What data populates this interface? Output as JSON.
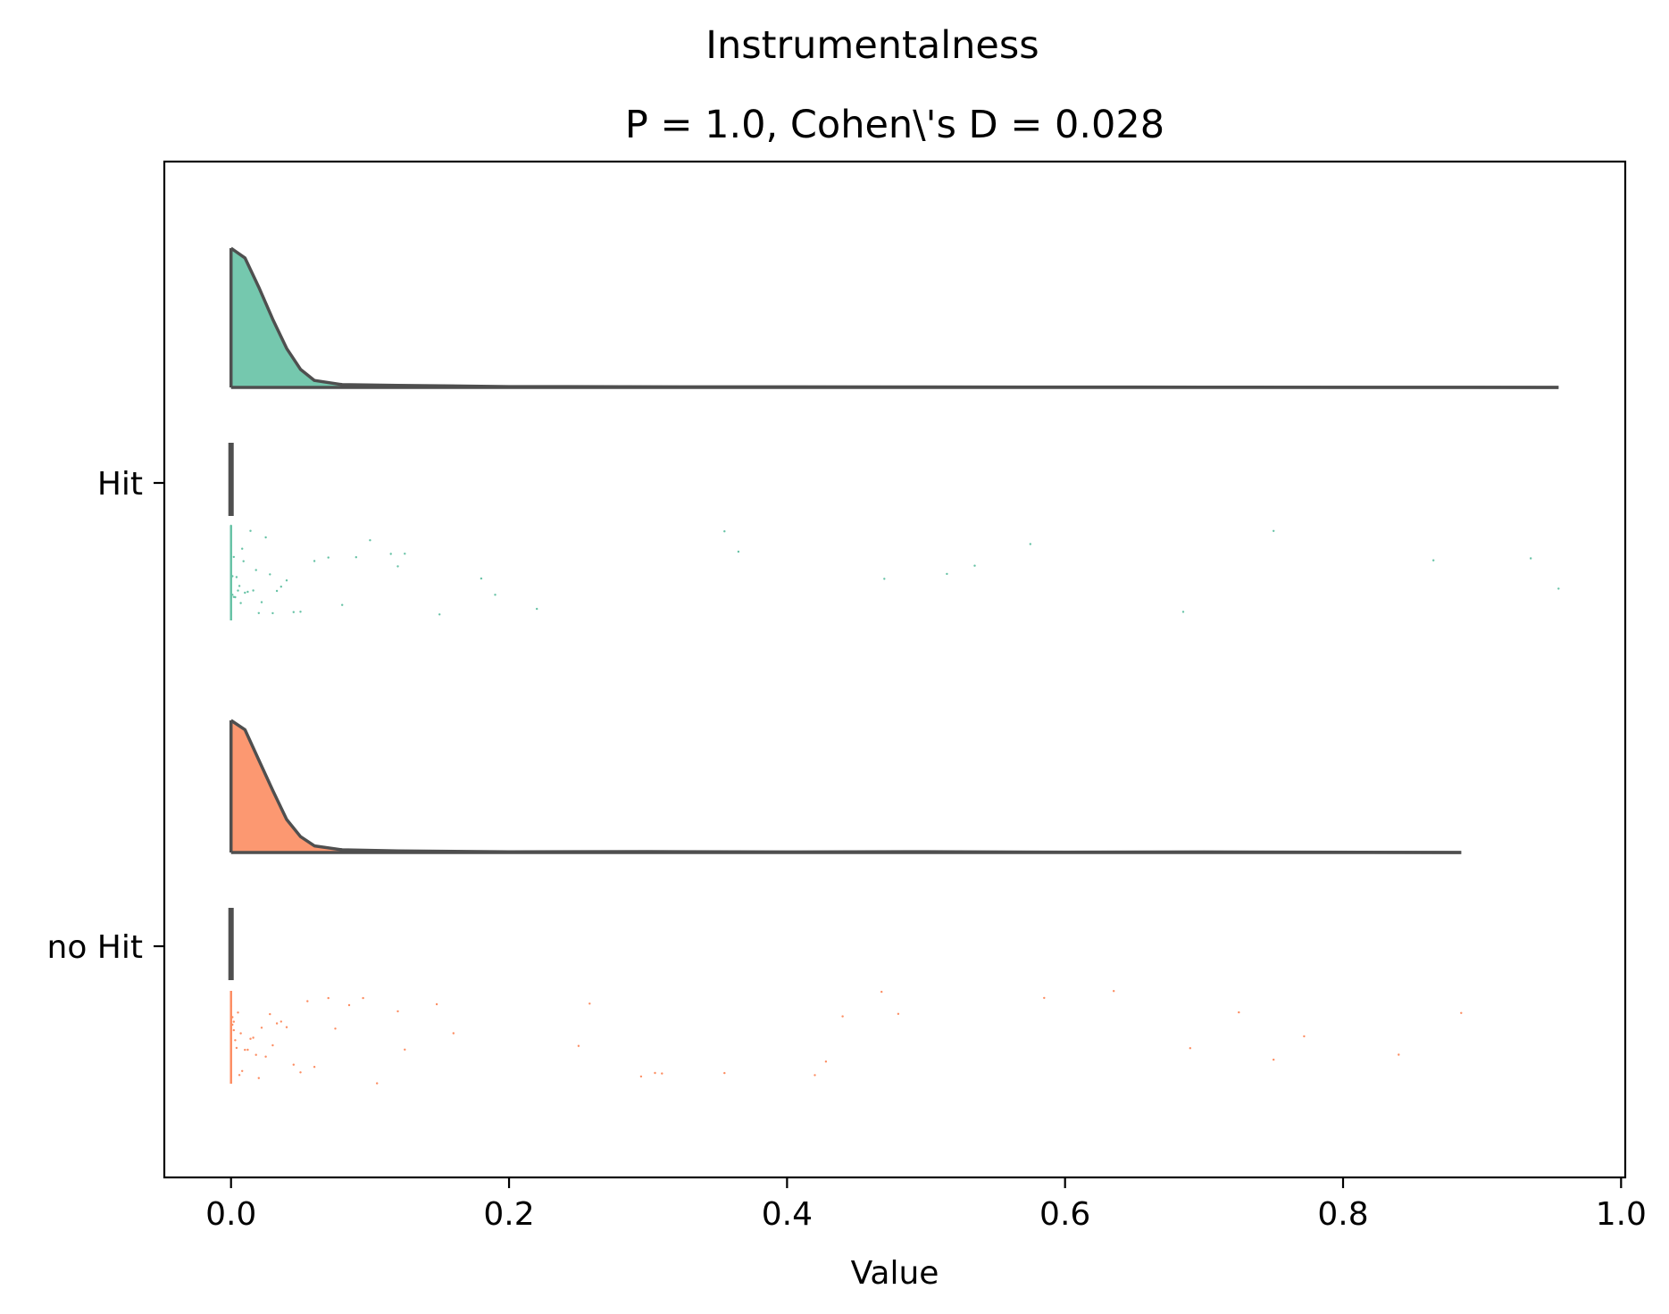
{
  "chart_data": {
    "type": "raincloud",
    "suptitle": "Instrumentalness",
    "title": "P = 1.0, Cohen\\'s D = 0.028",
    "xlabel": "Value",
    "ylabel": "",
    "xlim": [
      -0.048,
      1.003
    ],
    "xticks": [
      0.0,
      0.2,
      0.4,
      0.6,
      0.8,
      1.0
    ],
    "xtick_labels": [
      "0.0",
      "0.2",
      "0.4",
      "0.6",
      "0.8",
      "1.0"
    ],
    "grid": false,
    "colors": {
      "Hit": "#66c2a5",
      "no Hit": "#fc8d62",
      "outline": "#4f4f4f"
    },
    "groups": [
      {
        "name": "Hit",
        "color": "#66c2a5",
        "max": 0.955,
        "box_q1": 0.0,
        "box_q3": 0.0,
        "density_x": [
          0.0,
          0.01,
          0.02,
          0.03,
          0.04,
          0.05,
          0.06,
          0.08,
          0.12,
          0.2,
          0.35,
          0.5,
          0.7,
          0.955
        ],
        "density_y": [
          1.0,
          0.93,
          0.72,
          0.49,
          0.28,
          0.13,
          0.05,
          0.02,
          0.015,
          0.006,
          0.004,
          0.003,
          0.002,
          0.0
        ],
        "points": [
          0.0,
          0.0,
          0.0,
          0.0,
          0.001,
          0.001,
          0.002,
          0.002,
          0.003,
          0.004,
          0.005,
          0.006,
          0.007,
          0.008,
          0.009,
          0.01,
          0.012,
          0.014,
          0.016,
          0.018,
          0.02,
          0.022,
          0.025,
          0.028,
          0.03,
          0.033,
          0.036,
          0.04,
          0.045,
          0.05,
          0.06,
          0.07,
          0.08,
          0.09,
          0.1,
          0.115,
          0.12,
          0.125,
          0.15,
          0.18,
          0.19,
          0.22,
          0.355,
          0.365,
          0.47,
          0.515,
          0.535,
          0.575,
          0.685,
          0.75,
          0.865,
          0.935,
          0.955
        ]
      },
      {
        "name": "no Hit",
        "color": "#fc8d62",
        "max": 0.885,
        "box_q1": 0.0,
        "box_q3": 0.0,
        "density_x": [
          0.0,
          0.01,
          0.02,
          0.03,
          0.04,
          0.05,
          0.06,
          0.08,
          0.12,
          0.2,
          0.3,
          0.4,
          0.5,
          0.6,
          0.7,
          0.885
        ],
        "density_y": [
          1.0,
          0.93,
          0.7,
          0.47,
          0.25,
          0.12,
          0.05,
          0.02,
          0.012,
          0.005,
          0.007,
          0.004,
          0.006,
          0.003,
          0.004,
          0.0
        ],
        "points": [
          0.0,
          0.0,
          0.0,
          0.0,
          0.001,
          0.001,
          0.002,
          0.002,
          0.003,
          0.004,
          0.005,
          0.006,
          0.007,
          0.008,
          0.01,
          0.012,
          0.014,
          0.016,
          0.018,
          0.02,
          0.022,
          0.025,
          0.028,
          0.03,
          0.033,
          0.036,
          0.04,
          0.045,
          0.05,
          0.055,
          0.06,
          0.07,
          0.075,
          0.085,
          0.095,
          0.105,
          0.12,
          0.125,
          0.148,
          0.16,
          0.25,
          0.258,
          0.295,
          0.305,
          0.31,
          0.355,
          0.42,
          0.428,
          0.44,
          0.468,
          0.48,
          0.585,
          0.635,
          0.69,
          0.725,
          0.75,
          0.772,
          0.84,
          0.885
        ]
      }
    ]
  }
}
